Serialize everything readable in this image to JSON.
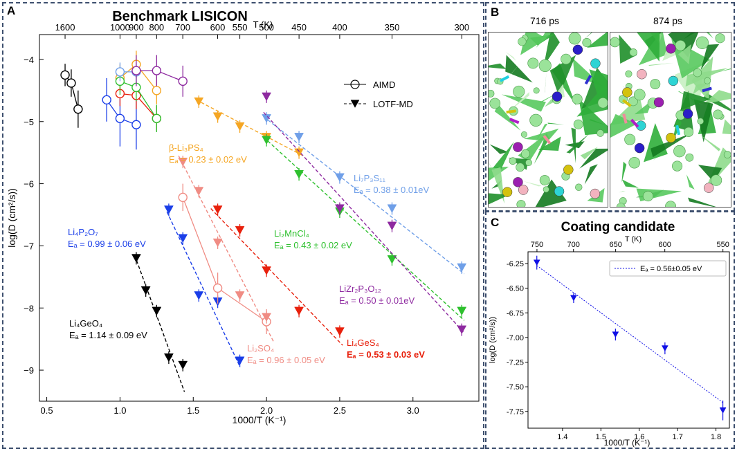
{
  "panel_a": {
    "letter": "A",
    "chart_data": {
      "type": "scatter",
      "title": "Benchmark LISICON",
      "xlabel": "1000/T (K⁻¹)",
      "ylabel": "log(D (cm²/s))",
      "x2label": "T (K)",
      "xlim": [
        0.45,
        3.45
      ],
      "ylim": [
        -9.5,
        -3.6
      ],
      "xticks": [
        0.5,
        1.0,
        1.5,
        2.0,
        2.5,
        3.0
      ],
      "xtick_labels": [
        "0.5",
        "1.0",
        "1.5",
        "2.0",
        "2.5",
        "3.0"
      ],
      "yticks": [
        -4,
        -5,
        -6,
        -7,
        -8,
        -9
      ],
      "ytick_labels": [
        "−4",
        "−5",
        "−6",
        "−7",
        "−8",
        "−9"
      ],
      "top_ticks": [
        1600,
        1000,
        900,
        800,
        700,
        600,
        550,
        500,
        450,
        400,
        350,
        300
      ],
      "top_tick_labels": [
        "1600",
        "1000",
        "900",
        "800",
        "700",
        "600",
        "550",
        "500",
        "450",
        "400",
        "350",
        "300"
      ],
      "legend": {
        "aimd": "AIMD",
        "lotf": "LOTF-MD"
      },
      "series": [
        {
          "name": "Li4GeO4",
          "color": "#000000",
          "aimd": {
            "x": [
              0.625,
              0.667,
              0.714
            ],
            "y": [
              -4.25,
              -4.38,
              -4.8
            ],
            "err": [
              0.18,
              0.22,
              0.3
            ]
          },
          "lotf": {
            "x": [
              1.111,
              1.176,
              1.25,
              1.333,
              1.429
            ],
            "y": [
              -7.2,
              -7.72,
              -8.05,
              -8.8,
              -8.92
            ]
          },
          "fit": {
            "x": [
              1.1,
              1.44
            ],
            "y": [
              -7.15,
              -9.35
            ]
          },
          "label_lines": [
            "Li₄GeO₄",
            "Eₐ = 1.14 ± 0.09 eV"
          ]
        },
        {
          "name": "Li4P2O7",
          "color": "#1a3ee8",
          "aimd": {
            "x": [
              0.909,
              1.0,
              1.111
            ],
            "y": [
              -4.65,
              -4.95,
              -5.05
            ],
            "err": [
              0.35,
              0.45,
              0.4
            ]
          },
          "lotf": {
            "x": [
              1.333,
              1.429,
              1.538,
              1.667,
              1.818
            ],
            "y": [
              -6.42,
              -6.88,
              -7.8,
              -7.9,
              -8.85
            ]
          },
          "fit": {
            "x": [
              1.32,
              1.82
            ],
            "y": [
              -6.45,
              -8.95
            ]
          },
          "label_lines": [
            "Li₄P₂O₇",
            "Eₐ = 0.99 ± 0.06 eV"
          ]
        },
        {
          "name": "Li2SO4",
          "color": "#f08c84",
          "aimd": {
            "x": [
              1.429,
              1.667,
              2.0
            ],
            "y": [
              -6.22,
              -7.68,
              -8.22
            ],
            "err": [
              0.22,
              0.25,
              0.2
            ]
          },
          "lotf": {
            "x": [
              1.429,
              1.538,
              1.667,
              1.818,
              2.0
            ],
            "y": [
              -5.65,
              -6.12,
              -6.95,
              -7.8,
              -8.15
            ]
          },
          "fit": {
            "x": [
              1.4,
              2.05
            ],
            "y": [
              -5.55,
              -8.55
            ]
          },
          "label_lines": [
            "Li₂SO₄",
            "Eₐ = 0.96 ± 0.05 eV"
          ]
        },
        {
          "name": "Li4GeS4",
          "color": "#e8200c",
          "aimd": {
            "x": [
              1.0,
              1.111,
              1.25
            ],
            "y": [
              -4.55,
              -4.58,
              -4.95
            ],
            "err": [
              0.2,
              0.22,
              0.2
            ]
          },
          "lotf": {
            "x": [
              1.667,
              1.818,
              2.0,
              2.222,
              2.5
            ],
            "y": [
              -6.42,
              -6.75,
              -7.4,
              -8.05,
              -8.38
            ]
          },
          "fit": {
            "x": [
              1.62,
              2.52
            ],
            "y": [
              -6.4,
              -8.6
            ]
          },
          "label_lines": [
            "Li₄GeS₄",
            "Eₐ = 0.53 ± 0.03 eV"
          ]
        },
        {
          "name": "beta-Li3PS4",
          "color": "#f5a623",
          "aimd": {
            "x": [
              1.0,
              1.111,
              1.25
            ],
            "y": [
              -4.3,
              -4.08,
              -4.5
            ],
            "err": [
              0.22,
              0.22,
              0.22
            ]
          },
          "lotf": {
            "x": [
              1.538,
              1.667,
              1.818,
              2.0,
              2.222
            ],
            "y": [
              -4.68,
              -4.92,
              -5.08,
              -5.25,
              -5.5
            ]
          },
          "fit": {
            "x": [
              1.52,
              2.25
            ],
            "y": [
              -4.65,
              -5.55
            ]
          },
          "label_lines": [
            "β-Li₃PS₄",
            "Eₐ = 0.23 ± 0.02 eV"
          ]
        },
        {
          "name": "Li2MnCl4",
          "color": "#2ec02e",
          "aimd": {
            "x": [
              1.0,
              1.111,
              1.25
            ],
            "y": [
              -4.35,
              -4.45,
              -4.95
            ],
            "err": [
              0.22,
              0.22,
              0.22
            ]
          },
          "lotf": {
            "x": [
              2.0,
              2.222,
              2.5,
              2.857,
              3.333
            ],
            "y": [
              -5.3,
              -5.85,
              -6.45,
              -7.22,
              -8.05
            ]
          },
          "fit": {
            "x": [
              1.98,
              3.35
            ],
            "y": [
              -5.25,
              -8.2
            ]
          },
          "label_lines": [
            "Li₂MnCl₄",
            "Eₐ = 0.43 ± 0.02 eV"
          ]
        },
        {
          "name": "Li7P3S11",
          "color": "#6f9fe8",
          "aimd": {
            "x": [
              1.0,
              1.111
            ],
            "y": [
              -4.2,
              -4.2
            ],
            "err": [
              0.15,
              0.15
            ]
          },
          "lotf": {
            "x": [
              2.0,
              2.222,
              2.5,
              2.857,
              3.333
            ],
            "y": [
              -4.95,
              -5.25,
              -5.9,
              -6.4,
              -7.35
            ]
          },
          "fit": {
            "x": [
              1.98,
              3.35
            ],
            "y": [
              -4.92,
              -7.45
            ]
          },
          "label_lines": [
            "Li₇P₃S₁₁",
            "Eₐ = 0.38 ± 0.01eV"
          ]
        },
        {
          "name": "LiZr2P3O12",
          "color": "#8e2aa0",
          "aimd": {
            "x": [
              1.111,
              1.25,
              1.429
            ],
            "y": [
              -4.18,
              -4.18,
              -4.35
            ],
            "err": [
              0.25,
              0.25,
              0.25
            ]
          },
          "lotf": {
            "x": [
              2.0,
              2.5,
              2.857,
              3.333
            ],
            "y": [
              -4.6,
              -6.4,
              -6.68,
              -8.35
            ]
          },
          "fit": {
            "x": [
              1.98,
              3.35
            ],
            "y": [
              -4.85,
              -8.4
            ]
          },
          "label_lines": [
            "LiZr₂P₃O₁₂",
            "Eₐ = 0.50 ± 0.01eV"
          ]
        }
      ]
    }
  },
  "panel_b": {
    "letter": "B",
    "frame1_label": "716 ps",
    "frame2_label": "874 ps"
  },
  "panel_c": {
    "letter": "C",
    "chart_data": {
      "type": "scatter",
      "title": "Coating candidate",
      "xlabel": "1000/T (K⁻¹)",
      "ylabel": "log(D (cm²/s))",
      "x2label": "T (K)",
      "xlim": [
        1.31,
        1.835
      ],
      "ylim": [
        -7.92,
        -6.13
      ],
      "xticks": [
        1.4,
        1.5,
        1.6,
        1.7,
        1.8
      ],
      "xtick_labels": [
        "1.4",
        "1.5",
        "1.6",
        "1.7",
        "1.8"
      ],
      "yticks": [
        -6.25,
        -6.5,
        -6.75,
        -7.0,
        -7.25,
        -7.5,
        -7.75
      ],
      "ytick_labels": [
        "-6.25",
        "-6.50",
        "-6.75",
        "-7.00",
        "-7.25",
        "-7.50",
        "-7.75"
      ],
      "top_ticks": [
        750,
        700,
        650,
        600,
        550
      ],
      "top_tick_labels": [
        "750",
        "700",
        "650",
        "600",
        "550"
      ],
      "points": {
        "x": [
          1.333,
          1.429,
          1.538,
          1.667,
          1.818
        ],
        "y": [
          -6.24,
          -6.6,
          -6.97,
          -7.11,
          -7.74
        ],
        "err": [
          0.07,
          0.05,
          0.06,
          0.06,
          0.1
        ]
      },
      "fit": {
        "x": [
          1.333,
          1.818
        ],
        "y": [
          -6.27,
          -7.66
        ]
      },
      "legend_label": "Eₐ = 0.56±0.05 eV",
      "color": "#1010e6"
    }
  }
}
